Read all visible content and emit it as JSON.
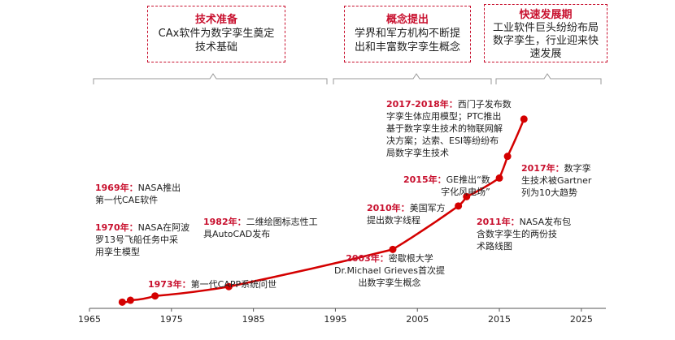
{
  "stages": [
    {
      "title": "技术准备",
      "desc": "CAx软件为数字孪生奠定\n技术基础"
    },
    {
      "title": "概念提出",
      "desc": "学界和军方机构不断提\n出和丰富数字孪生概念"
    },
    {
      "title": "快速发展期",
      "desc": "工业软件巨头纷纷布局\n数字孪生，行业迎来快\n速发展"
    }
  ],
  "events": [
    {
      "year": "1969年：",
      "text": "NASA推出\n第一代CAE软件"
    },
    {
      "year": "1970年：",
      "text": "NASA在阿波\n罗13号飞船任务中采\n用孪生模型"
    },
    {
      "year": "1973年：",
      "text": "第一代CAPP系统问世"
    },
    {
      "year": "1982年：",
      "text": "二维绘图标志性工\n具AutoCAD发布"
    },
    {
      "year": "2003年：",
      "text": "密歇根大学\nDr.Michael Grieves首次提\n出数字孪生概念"
    },
    {
      "year": "2010年：",
      "text": "美国军方\n提出数字线程"
    },
    {
      "year": "2011年：",
      "text": "NASA发布包\n含数字孪生的两份技\n术路线图"
    },
    {
      "year": "2015年：",
      "text": "GE推出“数\n字化风电场”"
    },
    {
      "year": "2017年：",
      "text": "数字孪\n生技术被Gartner\n列为10大趋势"
    },
    {
      "year": "2017-2018年：",
      "text": "西门子发布数\n字孪生体应用模型；PTC推出\n基于数字孪生技术的物联网解\n决方案；达索、ESI等纷纷布\n局数字孪生技术"
    }
  ],
  "chart_data": {
    "type": "line",
    "x": [
      1969,
      1970,
      1973,
      1982,
      2002,
      2010,
      2011,
      2015,
      2016,
      2018
    ],
    "y": [
      1,
      1.3,
      2,
      3.5,
      9.5,
      16.5,
      18,
      21,
      24.5,
      30.5
    ],
    "xlim": [
      1965,
      2027
    ],
    "ylim": [
      0,
      34
    ],
    "x_ticks": [
      "1965",
      "1975",
      "1985",
      "1995",
      "2005",
      "2015",
      "2025"
    ],
    "line_color": "#d40000"
  }
}
